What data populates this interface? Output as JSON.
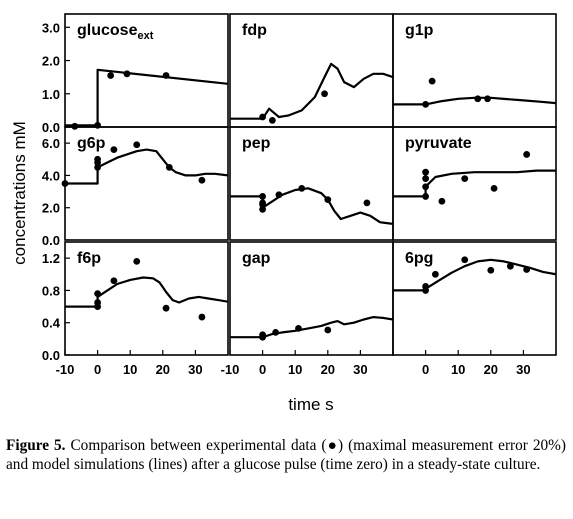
{
  "figure": {
    "ylabel": "concentrations mM",
    "xlabel": "time s",
    "caption": {
      "label": "Figure 5.",
      "text": "Comparison between experimental data (●) (maximal measurement error 20%) and model simulations (lines) after a glucose pulse (time zero) in a steady-state culture."
    }
  },
  "chart_data": [
    {
      "type": "line",
      "title": "glucose",
      "title_sub": "ext",
      "row": 0,
      "col": 0,
      "ylim": [
        0,
        3.4
      ],
      "yticks": [
        "0.0",
        "1.0",
        "2.0",
        "3.0"
      ],
      "ytick_values": [
        0,
        1,
        2,
        3
      ],
      "xlim": [
        -10,
        40
      ],
      "xticks": [],
      "series": [
        {
          "kind": "simulation",
          "x": [
            -10,
            0,
            0,
            40
          ],
          "y": [
            0.05,
            0.05,
            1.72,
            1.3
          ]
        },
        {
          "kind": "measured",
          "x": [
            -7,
            0,
            4,
            9,
            21
          ],
          "y": [
            0.02,
            0.05,
            1.55,
            1.6,
            1.55
          ]
        }
      ]
    },
    {
      "type": "line",
      "title": "fdp",
      "title_sub": "",
      "row": 0,
      "col": 1,
      "ylim": [
        0,
        3.4
      ],
      "yticks": [],
      "ytick_values": [],
      "xlim": [
        -10,
        40
      ],
      "xticks": [],
      "series": [
        {
          "kind": "simulation",
          "x": [
            -10,
            0,
            2,
            5,
            8,
            12,
            16,
            19,
            21,
            23,
            25,
            28,
            31,
            34,
            37,
            40
          ],
          "y": [
            0.25,
            0.25,
            0.55,
            0.3,
            0.35,
            0.5,
            0.9,
            1.5,
            1.9,
            1.75,
            1.35,
            1.2,
            1.45,
            1.6,
            1.6,
            1.5
          ]
        },
        {
          "kind": "measured",
          "x": [
            0,
            3,
            19
          ],
          "y": [
            0.3,
            0.2,
            1.0
          ]
        }
      ]
    },
    {
      "type": "line",
      "title": "g1p",
      "title_sub": "",
      "row": 0,
      "col": 2,
      "ylim": [
        0,
        3.4
      ],
      "yticks": [],
      "ytick_values": [],
      "xlim": [
        -10,
        40
      ],
      "xticks": [],
      "series": [
        {
          "kind": "simulation",
          "x": [
            -10,
            0,
            5,
            10,
            15,
            20,
            25,
            30,
            35,
            40
          ],
          "y": [
            0.68,
            0.68,
            0.78,
            0.85,
            0.88,
            0.88,
            0.84,
            0.8,
            0.76,
            0.72
          ]
        },
        {
          "kind": "measured",
          "x": [
            0,
            2,
            16,
            19
          ],
          "y": [
            0.68,
            1.38,
            0.85,
            0.85
          ]
        }
      ]
    },
    {
      "type": "line",
      "title": "g6p",
      "title_sub": "",
      "row": 1,
      "col": 0,
      "ylim": [
        0,
        7
      ],
      "yticks": [
        "0.0",
        "2.0",
        "4.0",
        "6.0"
      ],
      "ytick_values": [
        0,
        2,
        4,
        6
      ],
      "xlim": [
        -10,
        40
      ],
      "xticks": [],
      "series": [
        {
          "kind": "simulation",
          "x": [
            -10,
            0,
            0,
            3,
            6,
            9,
            12,
            15,
            18,
            20,
            22,
            24,
            27,
            30,
            33,
            36,
            40
          ],
          "y": [
            3.5,
            3.5,
            4.5,
            4.8,
            5.1,
            5.3,
            5.5,
            5.6,
            5.5,
            5.0,
            4.5,
            4.2,
            4.0,
            4.0,
            4.1,
            4.1,
            4.0
          ]
        },
        {
          "kind": "measured",
          "x": [
            -10,
            0,
            0,
            0,
            5,
            12,
            22,
            32
          ],
          "y": [
            3.5,
            4.8,
            5.0,
            4.5,
            5.6,
            5.9,
            4.5,
            3.7
          ]
        }
      ]
    },
    {
      "type": "line",
      "title": "pep",
      "title_sub": "",
      "row": 1,
      "col": 1,
      "ylim": [
        0,
        7
      ],
      "yticks": [],
      "ytick_values": [],
      "xlim": [
        -10,
        40
      ],
      "xticks": [],
      "series": [
        {
          "kind": "simulation",
          "x": [
            -10,
            0,
            0,
            3,
            6,
            10,
            14,
            18,
            20,
            22,
            24,
            27,
            30,
            33,
            36,
            40
          ],
          "y": [
            2.7,
            2.7,
            2.0,
            2.4,
            2.8,
            3.1,
            3.2,
            2.9,
            2.5,
            1.8,
            1.3,
            1.5,
            1.7,
            1.5,
            1.1,
            1.0
          ]
        },
        {
          "kind": "measured",
          "x": [
            0,
            0,
            0,
            0,
            5,
            12,
            20,
            32
          ],
          "y": [
            2.7,
            2.2,
            1.9,
            2.3,
            2.8,
            3.2,
            2.5,
            2.3
          ]
        }
      ]
    },
    {
      "type": "line",
      "title": "pyruvate",
      "title_sub": "",
      "row": 1,
      "col": 2,
      "ylim": [
        0,
        7
      ],
      "yticks": [],
      "ytick_values": [],
      "xlim": [
        -10,
        40
      ],
      "xticks": [],
      "series": [
        {
          "kind": "simulation",
          "x": [
            -10,
            0,
            0,
            3,
            8,
            15,
            22,
            28,
            34,
            40
          ],
          "y": [
            2.7,
            2.7,
            3.3,
            3.9,
            4.1,
            4.2,
            4.2,
            4.2,
            4.3,
            4.3
          ]
        },
        {
          "kind": "measured",
          "x": [
            0,
            0,
            0,
            0,
            5,
            12,
            21,
            31
          ],
          "y": [
            2.7,
            3.3,
            3.8,
            4.2,
            2.4,
            3.8,
            3.2,
            5.3
          ]
        }
      ]
    },
    {
      "type": "line",
      "title": "f6p",
      "title_sub": "",
      "row": 2,
      "col": 0,
      "ylim": [
        0,
        1.4
      ],
      "yticks": [
        "0.0",
        "0.4",
        "0.8",
        "1.2"
      ],
      "ytick_values": [
        0,
        0.4,
        0.8,
        1.2
      ],
      "xlim": [
        -10,
        40
      ],
      "xticks": [
        "-10",
        "0",
        "10",
        "20",
        "30"
      ],
      "xtick_values": [
        -10,
        0,
        10,
        20,
        30
      ],
      "series": [
        {
          "kind": "simulation",
          "x": [
            -10,
            0,
            0,
            3,
            6,
            10,
            14,
            17,
            19,
            21,
            23,
            25,
            28,
            31,
            34,
            37,
            40
          ],
          "y": [
            0.6,
            0.6,
            0.72,
            0.8,
            0.88,
            0.93,
            0.96,
            0.95,
            0.9,
            0.78,
            0.68,
            0.65,
            0.7,
            0.72,
            0.7,
            0.68,
            0.66
          ]
        },
        {
          "kind": "measured",
          "x": [
            0,
            0,
            0,
            5,
            12,
            21,
            32
          ],
          "y": [
            0.6,
            0.65,
            0.76,
            0.92,
            1.16,
            0.58,
            0.47
          ]
        }
      ]
    },
    {
      "type": "line",
      "title": "gap",
      "title_sub": "",
      "row": 2,
      "col": 1,
      "ylim": [
        0,
        1.4
      ],
      "yticks": [],
      "ytick_values": [],
      "xlim": [
        -10,
        40
      ],
      "xticks": [
        "-10",
        "0",
        "10",
        "20",
        "30"
      ],
      "xtick_values": [
        -10,
        0,
        10,
        20,
        30
      ],
      "series": [
        {
          "kind": "simulation",
          "x": [
            -10,
            0,
            3,
            6,
            10,
            14,
            18,
            21,
            23,
            25,
            28,
            31,
            34,
            37,
            40
          ],
          "y": [
            0.22,
            0.22,
            0.26,
            0.28,
            0.3,
            0.33,
            0.36,
            0.4,
            0.42,
            0.38,
            0.4,
            0.44,
            0.47,
            0.46,
            0.44
          ]
        },
        {
          "kind": "measured",
          "x": [
            0,
            0,
            4,
            11,
            20
          ],
          "y": [
            0.22,
            0.25,
            0.28,
            0.33,
            0.31
          ]
        }
      ]
    },
    {
      "type": "line",
      "title": "6pg",
      "title_sub": "",
      "row": 2,
      "col": 2,
      "ylim": [
        0,
        1.4
      ],
      "yticks": [],
      "ytick_values": [],
      "xlim": [
        -10,
        40
      ],
      "xticks": [
        "0",
        "10",
        "20",
        "30"
      ],
      "xtick_values": [
        0,
        10,
        20,
        30
      ],
      "series": [
        {
          "kind": "simulation",
          "x": [
            -10,
            0,
            0,
            4,
            8,
            12,
            16,
            20,
            24,
            28,
            32,
            36,
            40
          ],
          "y": [
            0.8,
            0.8,
            0.82,
            0.92,
            1.02,
            1.1,
            1.16,
            1.18,
            1.16,
            1.12,
            1.08,
            1.03,
            1.0
          ]
        },
        {
          "kind": "measured",
          "x": [
            0,
            0,
            3,
            12,
            20,
            26,
            31
          ],
          "y": [
            0.8,
            0.85,
            1.0,
            1.18,
            1.05,
            1.1,
            1.06
          ]
        }
      ]
    }
  ]
}
